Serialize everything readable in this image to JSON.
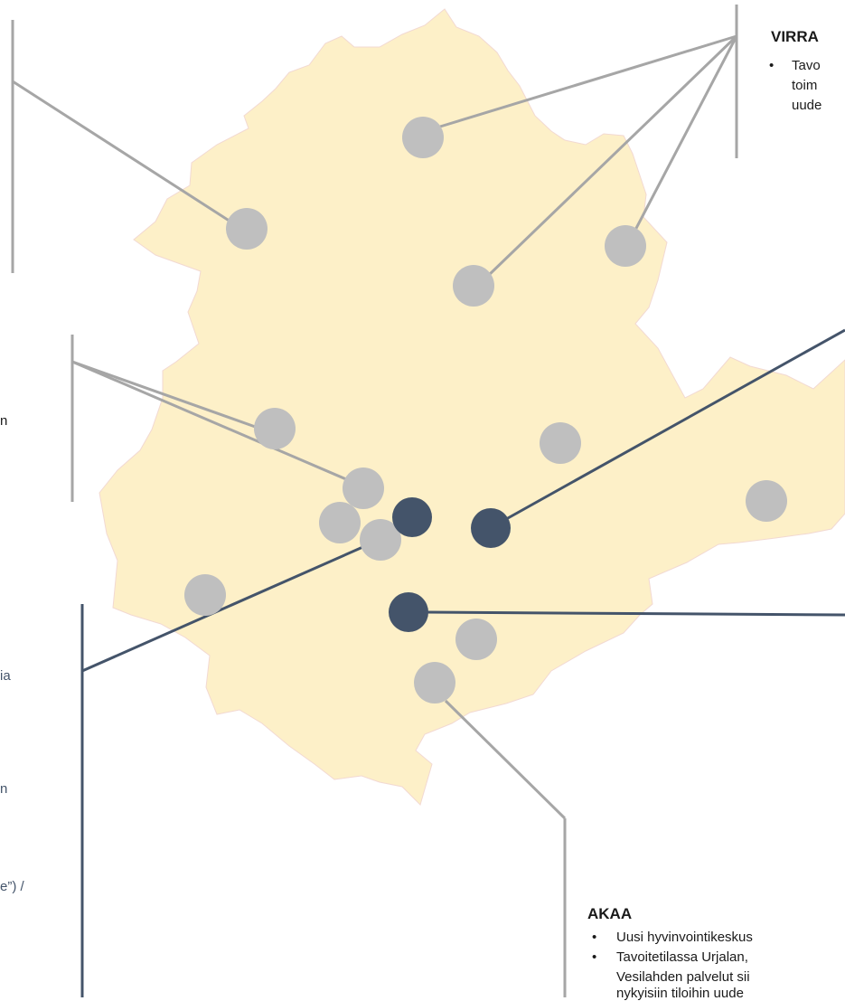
{
  "map": {
    "region_fill": "#fdf0c8",
    "region_stroke": "#f2d9d2",
    "grey_marker_color": "#bfbfbf",
    "dark_marker_color": "#44546a",
    "grey_line_color": "#a6a6a6",
    "dark_line_color": "#44546a"
  },
  "callouts": {
    "virrat": {
      "title": "VIRRA",
      "bullet": "•",
      "lines": [
        "Tavo",
        "toim",
        "uude"
      ]
    },
    "akaa": {
      "title": "AKAA",
      "bullets": [
        {
          "bullet": "•",
          "text": "Uusi hyvinvointikeskus"
        },
        {
          "bullet": "•",
          "text": "Tavoitetilassa Urjalan,"
        }
      ],
      "continuation": [
        "Vesilahden palvelut sii",
        "nykyisiin tiloihin uude"
      ]
    },
    "left_fragments": {
      "mid_n": "n",
      "blue_ia": "ia",
      "blue_n": "n",
      "blue_e": "e”) /"
    }
  }
}
